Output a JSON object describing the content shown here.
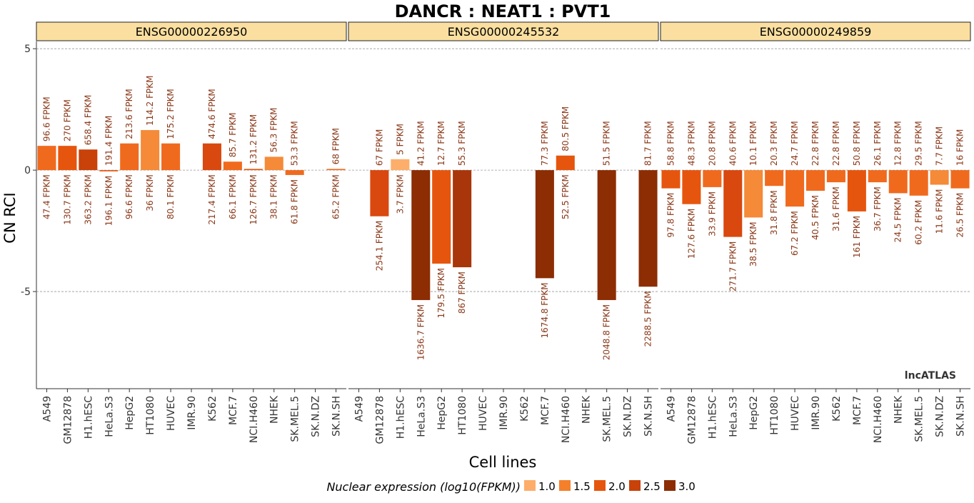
{
  "chart_data": {
    "type": "bar",
    "title": "DANCR : NEAT1 : PVT1",
    "xlabel": "Cell lines",
    "ylabel": "CN RCI",
    "watermark": "lncATLAS",
    "ylim": [
      -9,
      5.3
    ],
    "yticks": [
      5,
      0,
      -5
    ],
    "ytick_labels": [
      "5",
      "0",
      "-5"
    ],
    "grid_lines": [
      5,
      0,
      -5
    ],
    "categories": [
      "A549",
      "GM12878",
      "H1.hESC",
      "HeLa.S3",
      "HepG2",
      "HT1080",
      "HUVEC",
      "IMR.90",
      "K562",
      "MCF.7",
      "NCI.H460",
      "NHEK",
      "SK.MEL.5",
      "SK.N.DZ",
      "SK.N.SH"
    ],
    "legend": {
      "title": "Nuclear expression (log10(FPKM))",
      "position": "bottom",
      "items": [
        {
          "label": "1.0",
          "color": "#FDAE6B"
        },
        {
          "label": "1.5",
          "color": "#F5802B"
        },
        {
          "label": "2.0",
          "color": "#E6550D"
        },
        {
          "label": "2.5",
          "color": "#C8420A"
        },
        {
          "label": "3.0",
          "color": "#8C2D04"
        }
      ]
    },
    "panels": [
      {
        "name": "ENSG00000226950",
        "bars": [
          {
            "cell": "A549",
            "value": 1.0,
            "color": "#F06A1E",
            "top_label": "96.6 FPKM",
            "bottom_label": "47.4 FPKM"
          },
          {
            "cell": "GM12878",
            "value": 1.0,
            "color": "#E6550D",
            "top_label": "270 FPKM",
            "bottom_label": "130.7 FPKM"
          },
          {
            "cell": "H1.hESC",
            "value": 0.85,
            "color": "#C8420A",
            "top_label": "658.4 FPKM",
            "bottom_label": "363.2 FPKM"
          },
          {
            "cell": "HeLa.S3",
            "value": -0.05,
            "color": "#E6550D",
            "top_label": "191.4 FPKM",
            "bottom_label": "196.1 FPKM"
          },
          {
            "cell": "HepG2",
            "value": 1.1,
            "color": "#F06A1E",
            "top_label": "213.6 FPKM",
            "bottom_label": "96.6 FPKM"
          },
          {
            "cell": "HT1080",
            "value": 1.65,
            "color": "#F58A38",
            "top_label": "114.2 FPKM",
            "bottom_label": "36 FPKM"
          },
          {
            "cell": "HUVEC",
            "value": 1.1,
            "color": "#F06A1E",
            "top_label": "175.2 FPKM",
            "bottom_label": "80.1 FPKM"
          },
          {
            "cell": "IMR.90",
            "value": null,
            "color": "",
            "top_label": "",
            "bottom_label": ""
          },
          {
            "cell": "K562",
            "value": 1.1,
            "color": "#D9480F",
            "top_label": "474.6 FPKM",
            "bottom_label": "217.4 FPKM"
          },
          {
            "cell": "MCF.7",
            "value": 0.35,
            "color": "#F06A1E",
            "top_label": "85.7 FPKM",
            "bottom_label": "66.1 FPKM"
          },
          {
            "cell": "NCI.H460",
            "value": 0.05,
            "color": "#E6550D",
            "top_label": "131.2 FPKM",
            "bottom_label": "126.7 FPKM"
          },
          {
            "cell": "NHEK",
            "value": 0.55,
            "color": "#F58A38",
            "top_label": "56.3 FPKM",
            "bottom_label": "38.1 FPKM"
          },
          {
            "cell": "SK.MEL.5",
            "value": -0.2,
            "color": "#F06A1E",
            "top_label": "53.3 FPKM",
            "bottom_label": "61.8 FPKM"
          },
          {
            "cell": "SK.N.DZ",
            "value": null,
            "color": "",
            "top_label": "",
            "bottom_label": ""
          },
          {
            "cell": "SK.N.SH",
            "value": 0.05,
            "color": "#F06A1E",
            "top_label": "68 FPKM",
            "bottom_label": "65.2 FPKM"
          }
        ]
      },
      {
        "name": "ENSG00000245532",
        "bars": [
          {
            "cell": "A549",
            "value": null,
            "color": "",
            "top_label": "",
            "bottom_label": ""
          },
          {
            "cell": "GM12878",
            "value": -1.9,
            "color": "#D9480F",
            "top_label": "67 FPKM",
            "bottom_label": "254.1 FPKM"
          },
          {
            "cell": "H1.hESC",
            "value": 0.45,
            "color": "#FDAE6B",
            "top_label": "5 FPKM",
            "bottom_label": "3.7 FPKM"
          },
          {
            "cell": "HeLa.S3",
            "value": -5.35,
            "color": "#8C2D04",
            "top_label": "41.2 FPKM",
            "bottom_label": "1636.7 FPKM"
          },
          {
            "cell": "HepG2",
            "value": -3.85,
            "color": "#E6550D",
            "top_label": "12.7 FPKM",
            "bottom_label": "179.5 FPKM"
          },
          {
            "cell": "HT1080",
            "value": -4.0,
            "color": "#A8360A",
            "top_label": "55.3 FPKM",
            "bottom_label": "867 FPKM"
          },
          {
            "cell": "HUVEC",
            "value": null,
            "color": "",
            "top_label": "",
            "bottom_label": ""
          },
          {
            "cell": "IMR.90",
            "value": null,
            "color": "",
            "top_label": "",
            "bottom_label": ""
          },
          {
            "cell": "K562",
            "value": null,
            "color": "",
            "top_label": "",
            "bottom_label": ""
          },
          {
            "cell": "MCF.7",
            "value": -4.45,
            "color": "#8C2D04",
            "top_label": "77.3 FPKM",
            "bottom_label": "1674.8 FPKM"
          },
          {
            "cell": "NCI.H460",
            "value": 0.6,
            "color": "#E6550D",
            "top_label": "80.5 FPKM",
            "bottom_label": "52.5 FPKM"
          },
          {
            "cell": "NHEK",
            "value": null,
            "color": "",
            "top_label": "",
            "bottom_label": ""
          },
          {
            "cell": "SK.MEL.5",
            "value": -5.35,
            "color": "#8C2D04",
            "top_label": "51.5 FPKM",
            "bottom_label": "2048.8 FPKM"
          },
          {
            "cell": "SK.N.DZ",
            "value": null,
            "color": "",
            "top_label": "",
            "bottom_label": ""
          },
          {
            "cell": "SK.N.SH",
            "value": -4.8,
            "color": "#8C2D04",
            "top_label": "81.7 FPKM",
            "bottom_label": "2288.5 FPKM"
          }
        ]
      },
      {
        "name": "ENSG00000249859",
        "bars": [
          {
            "cell": "A549",
            "value": -0.75,
            "color": "#E6550D",
            "top_label": "58.8 FPKM",
            "bottom_label": "97.8 FPKM"
          },
          {
            "cell": "GM12878",
            "value": -1.4,
            "color": "#E6550D",
            "top_label": "48.3 FPKM",
            "bottom_label": "127.6 FPKM"
          },
          {
            "cell": "H1.hESC",
            "value": -0.7,
            "color": "#F06A1E",
            "top_label": "20.8 FPKM",
            "bottom_label": "33.9 FPKM"
          },
          {
            "cell": "HeLa.S3",
            "value": -2.75,
            "color": "#D9480F",
            "top_label": "40.6 FPKM",
            "bottom_label": "271.7 FPKM"
          },
          {
            "cell": "HepG2",
            "value": -1.95,
            "color": "#F58A38",
            "top_label": "10.1 FPKM",
            "bottom_label": "38.5 FPKM"
          },
          {
            "cell": "HT1080",
            "value": -0.65,
            "color": "#F06A1E",
            "top_label": "20.3 FPKM",
            "bottom_label": "31.8 FPKM"
          },
          {
            "cell": "HUVEC",
            "value": -1.5,
            "color": "#F06A1E",
            "top_label": "24.7 FPKM",
            "bottom_label": "67.2 FPKM"
          },
          {
            "cell": "IMR.90",
            "value": -0.85,
            "color": "#F06A1E",
            "top_label": "22.8 FPKM",
            "bottom_label": "40.5 FPKM"
          },
          {
            "cell": "K562",
            "value": -0.5,
            "color": "#F06A1E",
            "top_label": "22.8 FPKM",
            "bottom_label": "31.6 FPKM"
          },
          {
            "cell": "MCF.7",
            "value": -1.7,
            "color": "#E6550D",
            "top_label": "50.8 FPKM",
            "bottom_label": "161 FPKM"
          },
          {
            "cell": "NCI.H460",
            "value": -0.5,
            "color": "#F06A1E",
            "top_label": "26.1 FPKM",
            "bottom_label": "36.7 FPKM"
          },
          {
            "cell": "NHEK",
            "value": -0.95,
            "color": "#F06A1E",
            "top_label": "12.8 FPKM",
            "bottom_label": "24.5 FPKM"
          },
          {
            "cell": "SK.MEL.5",
            "value": -1.05,
            "color": "#F06A1E",
            "top_label": "29.5 FPKM",
            "bottom_label": "60.2 FPKM"
          },
          {
            "cell": "SK.N.DZ",
            "value": -0.6,
            "color": "#F58A38",
            "top_label": "7.7 FPKM",
            "bottom_label": "11.6 FPKM"
          },
          {
            "cell": "SK.N.SH",
            "value": -0.75,
            "color": "#F06A1E",
            "top_label": "16 FPKM",
            "bottom_label": "26.5 FPKM"
          }
        ]
      }
    ]
  },
  "style": {
    "strip_fill": "#FADFA0",
    "label_color": "#8B3A1A",
    "grid_color": "#999999",
    "axis_color": "#333333",
    "text_color": "#000000"
  }
}
